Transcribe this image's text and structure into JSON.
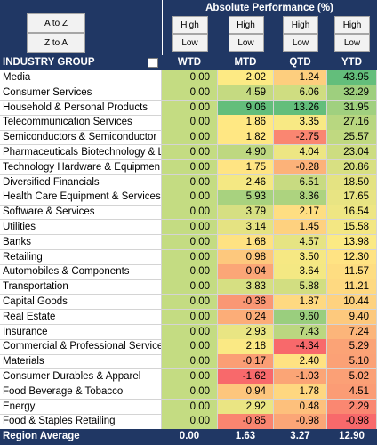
{
  "performance_header": "Absolute Performance (%)",
  "sort_buttons": [
    "A to Z",
    "Z to A"
  ],
  "columns": [
    {
      "label": "WTD",
      "high": "High",
      "low": "Low"
    },
    {
      "label": "MTD",
      "high": "High",
      "low": "Low"
    },
    {
      "label": "QTD",
      "high": "High",
      "low": "Low"
    },
    {
      "label": "YTD",
      "high": "High",
      "low": "Low"
    }
  ],
  "table": {
    "header": "INDUSTRY GROUP",
    "rows": [
      [
        "Media",
        "0.00",
        "2.02",
        "1.24",
        "43.95"
      ],
      [
        "Consumer Services",
        "0.00",
        "4.59",
        "6.06",
        "32.29"
      ],
      [
        "Household & Personal Products",
        "0.00",
        "9.06",
        "13.26",
        "31.95"
      ],
      [
        "Telecommunication Services",
        "0.00",
        "1.86",
        "3.35",
        "27.16"
      ],
      [
        "Semiconductors & Semiconductor",
        "0.00",
        "1.82",
        "-2.75",
        "25.57"
      ],
      [
        "Pharmaceuticals Biotechnology & L",
        "0.00",
        "4.90",
        "4.04",
        "23.04"
      ],
      [
        "Technology Hardware & Equipmen",
        "0.00",
        "1.75",
        "-0.28",
        "20.86"
      ],
      [
        "Diversified Financials",
        "0.00",
        "2.46",
        "6.51",
        "18.50"
      ],
      [
        "Health Care Equipment & Services",
        "0.00",
        "5.93",
        "8.36",
        "17.65"
      ],
      [
        "Software & Services",
        "0.00",
        "3.79",
        "2.17",
        "16.54"
      ],
      [
        "Utilities",
        "0.00",
        "3.14",
        "1.45",
        "15.58"
      ],
      [
        "Banks",
        "0.00",
        "1.68",
        "4.57",
        "13.98"
      ],
      [
        "Retailing",
        "0.00",
        "0.98",
        "3.50",
        "12.30"
      ],
      [
        "Automobiles & Components",
        "0.00",
        "0.04",
        "3.64",
        "11.57"
      ],
      [
        "Transportation",
        "0.00",
        "3.83",
        "5.88",
        "11.21"
      ],
      [
        "Capital Goods",
        "0.00",
        "-0.36",
        "1.87",
        "10.44"
      ],
      [
        "Real Estate",
        "0.00",
        "0.24",
        "9.60",
        "9.40"
      ],
      [
        "Insurance",
        "0.00",
        "2.93",
        "7.43",
        "7.24"
      ],
      [
        "Commercial & Professional Service",
        "0.00",
        "2.18",
        "-4.34",
        "5.29"
      ],
      [
        "Materials",
        "0.00",
        "-0.17",
        "2.40",
        "5.10"
      ],
      [
        "Consumer Durables & Apparel",
        "0.00",
        "-1.62",
        "-1.03",
        "5.02"
      ],
      [
        "Food Beverage & Tobacco",
        "0.00",
        "0.94",
        "1.78",
        "4.51"
      ],
      [
        "Energy",
        "0.00",
        "2.92",
        "0.48",
        "2.29"
      ],
      [
        "Food & Staples Retailing",
        "0.00",
        "-0.85",
        "-0.98",
        "-0.98"
      ]
    ],
    "footer": [
      "Region Average",
      "0.00",
      "1.63",
      "3.27",
      "12.90"
    ]
  }
}
